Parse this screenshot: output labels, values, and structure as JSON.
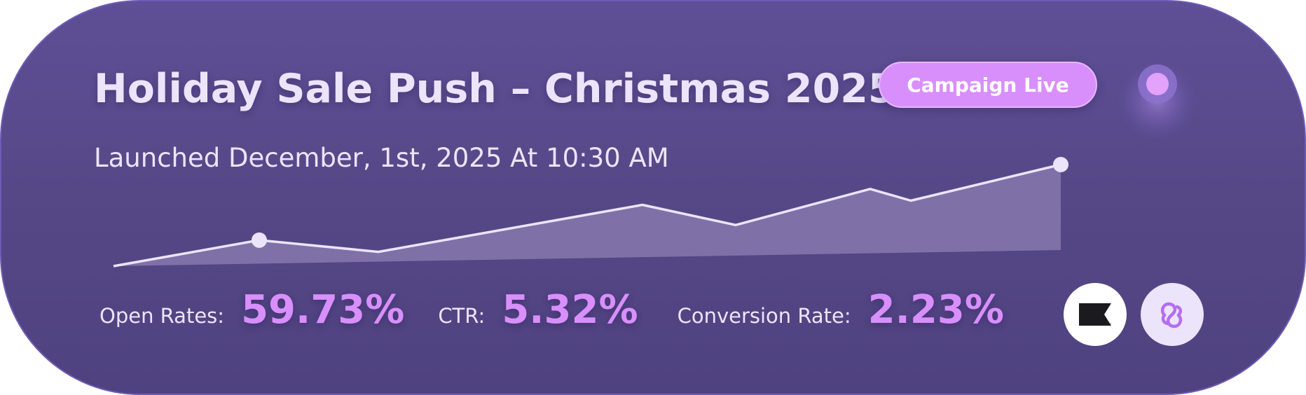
{
  "campaign": {
    "title": "Holiday Sale Push – Christmas 2025",
    "status_label": "Campaign Live",
    "launched_text": "Launched December, 1st, 2025 At 10:30 AM"
  },
  "metrics": [
    {
      "label": "Open Rates:",
      "value": "59.73%"
    },
    {
      "label": "CTR:",
      "value": "5.32%"
    },
    {
      "label": "Conversion Rate:",
      "value": "2.23%"
    }
  ],
  "sparkline": {
    "points": [
      {
        "x": 0,
        "y": 0
      },
      {
        "x": 1,
        "y": 31
      },
      {
        "x": 2,
        "y": 17
      },
      {
        "x": 3,
        "y": 73
      },
      {
        "x": 4,
        "y": 49
      },
      {
        "x": 5,
        "y": 92
      },
      {
        "x": 6,
        "y": 78
      },
      {
        "x": 7,
        "y": 121
      }
    ],
    "highlighted_points": [
      1,
      7
    ]
  },
  "integrations": [
    {
      "icon": "klaviyo-flag-icon"
    },
    {
      "icon": "link-icon"
    }
  ],
  "colors": {
    "card_bg": "#574987",
    "accent": "#d88ffb",
    "text": "#ece4fb",
    "line": "#ece4fb",
    "area_fill": "#8475ab"
  }
}
